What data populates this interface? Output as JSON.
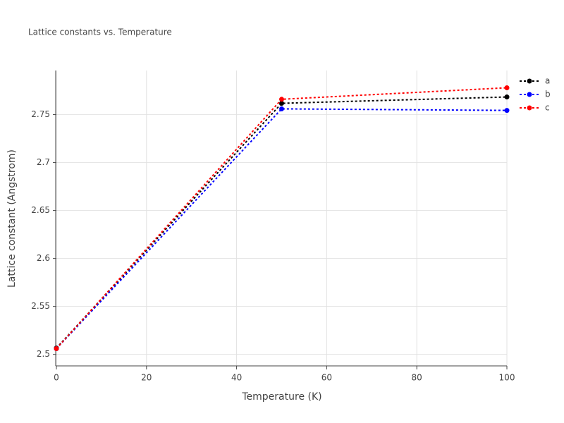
{
  "chart_data": {
    "type": "line",
    "title": "Lattice constants vs. Temperature",
    "x_label": "Temperature (K)",
    "y_label": "Lattice constant (Angstrom)",
    "x": [
      0,
      50,
      100
    ],
    "series": [
      {
        "name": "a",
        "color": "#000000",
        "values": [
          2.5066,
          2.7618,
          2.7684
        ]
      },
      {
        "name": "b",
        "color": "#0000ff",
        "values": [
          2.506,
          2.756,
          2.7544
        ]
      },
      {
        "name": "c",
        "color": "#ff0000",
        "values": [
          2.506,
          2.766,
          2.778
        ]
      }
    ],
    "xlim": [
      0,
      100
    ],
    "xticks": [
      0,
      20,
      40,
      60,
      80,
      100
    ],
    "ylim": [
      2.488,
      2.796
    ],
    "yticks": [
      2.5,
      2.55,
      2.6,
      2.65,
      2.7,
      2.75
    ],
    "grid": true,
    "legend": "top-right"
  }
}
